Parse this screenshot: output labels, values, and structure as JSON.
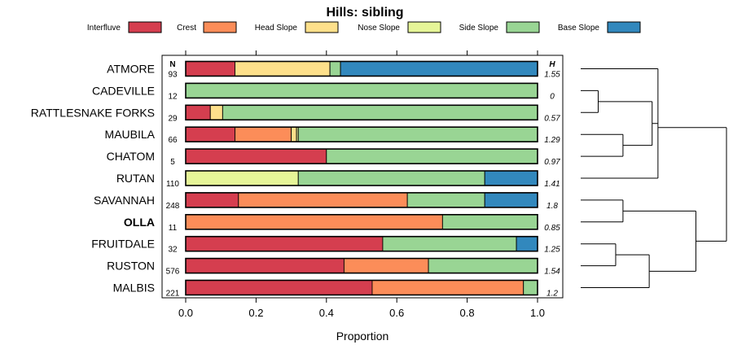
{
  "chart_data": {
    "type": "bar",
    "orientation": "horizontal",
    "stacked": true,
    "title": "Hills: sibling",
    "xlabel": "Proportion",
    "ylabel": "",
    "xlim": [
      0,
      1
    ],
    "x_ticks": [
      "0.0",
      "0.2",
      "0.4",
      "0.6",
      "0.8",
      "1.0"
    ],
    "legend_position": "top",
    "n_header": "N",
    "h_header": "H",
    "legend": [
      {
        "name": "Interfluve",
        "color": "#d53e4f"
      },
      {
        "name": "Crest",
        "color": "#fc8d59"
      },
      {
        "name": "Head Slope",
        "color": "#fee08b"
      },
      {
        "name": "Nose Slope",
        "color": "#e6f598"
      },
      {
        "name": "Side Slope",
        "color": "#99d594"
      },
      {
        "name": "Base Slope",
        "color": "#3288bd"
      }
    ],
    "categories": [
      "ATMORE",
      "CADEVILLE",
      "RATTLESNAKE FORKS",
      "MAUBILA",
      "CHATOM",
      "RUTAN",
      "SAVANNAH",
      "OLLA",
      "FRUITDALE",
      "RUSTON",
      "MALBIS"
    ],
    "highlighted_category": "OLLA",
    "n_values": [
      "93",
      "12",
      "29",
      "66",
      "5",
      "110",
      "248",
      "11",
      "32",
      "576",
      "221"
    ],
    "h_values": [
      "1.55",
      "0",
      "0.57",
      "1.29",
      "0.97",
      "1.41",
      "1.8",
      "0.85",
      "1.25",
      "1.54",
      "1.2"
    ],
    "series": [
      {
        "name": "Interfluve",
        "values": [
          0.14,
          0,
          0.07,
          0.14,
          0.4,
          0,
          0.15,
          0,
          0.56,
          0.45,
          0.53
        ]
      },
      {
        "name": "Crest",
        "values": [
          0,
          0,
          0,
          0.16,
          0,
          0,
          0.48,
          0.73,
          0,
          0.24,
          0.43
        ]
      },
      {
        "name": "Head Slope",
        "values": [
          0.27,
          0,
          0.035,
          0.015,
          0,
          0,
          0,
          0,
          0,
          0,
          0
        ]
      },
      {
        "name": "Nose Slope",
        "values": [
          0,
          0,
          0,
          0.005,
          0,
          0.32,
          0,
          0,
          0,
          0,
          0
        ]
      },
      {
        "name": "Side Slope",
        "values": [
          0.03,
          1.0,
          0.895,
          0.68,
          0.6,
          0.53,
          0.22,
          0.27,
          0.38,
          0.31,
          0.04
        ]
      },
      {
        "name": "Base Slope",
        "values": [
          0.56,
          0,
          0,
          0,
          0,
          0.15,
          0.15,
          0,
          0.06,
          0,
          0
        ]
      }
    ],
    "dendrogram": {
      "description": "hierarchical clustering of row profiles",
      "merges": [
        {
          "left": "CADEVILLE",
          "right": "RATTLESNAKE FORKS",
          "height": 0.12
        },
        {
          "left": "MAUBILA",
          "right": "CHATOM",
          "height": 0.29
        },
        {
          "left": "ATMORE",
          "right": "RUTAN",
          "height": 0.29
        },
        {
          "left": "SAVANNAH",
          "right": "OLLA",
          "height": 0.29
        },
        {
          "left": "FRUITDALE",
          "right": "RUSTON",
          "height": 0.25
        },
        {
          "left": "FRUITDALE+RUSTON",
          "right": "MALBIS",
          "height": 0.47
        },
        {
          "left": "CADEVILLE+RATTLESNAKE FORKS",
          "right": "MAUBILA+CHATOM",
          "height": 0.51
        },
        {
          "left": "CADEVILLE+RATTLESNAKE FORKS+MAUBILA+CHATOM",
          "right": "ATMORE+RUTAN",
          "height": 0.53
        },
        {
          "left": "SAVANNAH+OLLA",
          "right": "FRUITDALE+RUSTON+MALBIS",
          "height": 0.8
        },
        {
          "left": "upper cluster",
          "right": "lower cluster",
          "height": 1.0
        }
      ]
    }
  }
}
